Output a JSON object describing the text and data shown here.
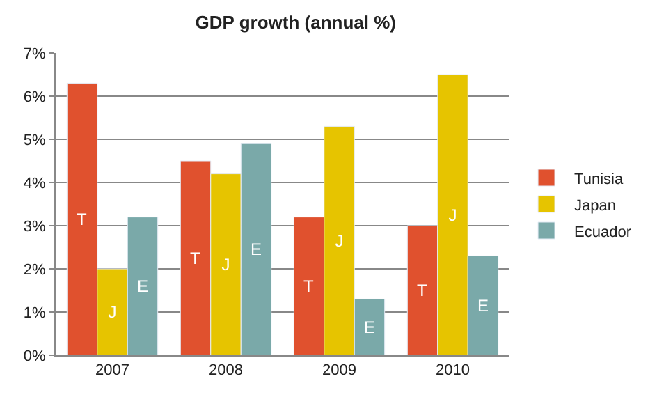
{
  "chart_data": {
    "type": "bar",
    "title": "GDP growth (annual %)",
    "categories": [
      "2007",
      "2008",
      "2009",
      "2010"
    ],
    "series": [
      {
        "name": "Tunisia",
        "color": "#e0512e",
        "values": [
          6.3,
          4.5,
          3.2,
          3.0
        ],
        "value_labels": [
          "T",
          "T",
          "T",
          "T"
        ]
      },
      {
        "name": "Japan",
        "color": "#e6c400",
        "values": [
          2.0,
          4.2,
          5.3,
          6.5
        ],
        "value_labels": [
          "J",
          "J",
          "J",
          "J"
        ]
      },
      {
        "name": "Ecuador",
        "color": "#7aa9a9",
        "values": [
          3.2,
          4.9,
          1.3,
          2.3
        ],
        "value_labels": [
          "E",
          "E",
          "E",
          "E"
        ]
      }
    ],
    "ylim": [
      0,
      7
    ],
    "yticks": [
      {
        "value": 0,
        "label": "0%"
      },
      {
        "value": 1,
        "label": "1%"
      },
      {
        "value": 2,
        "label": "2%"
      },
      {
        "value": 3,
        "label": "3%"
      },
      {
        "value": 4,
        "label": "4%"
      },
      {
        "value": 5,
        "label": "5%"
      },
      {
        "value": 6,
        "label": "6%"
      },
      {
        "value": 7,
        "label": "7%"
      }
    ],
    "grid": "y",
    "legend": "right"
  }
}
